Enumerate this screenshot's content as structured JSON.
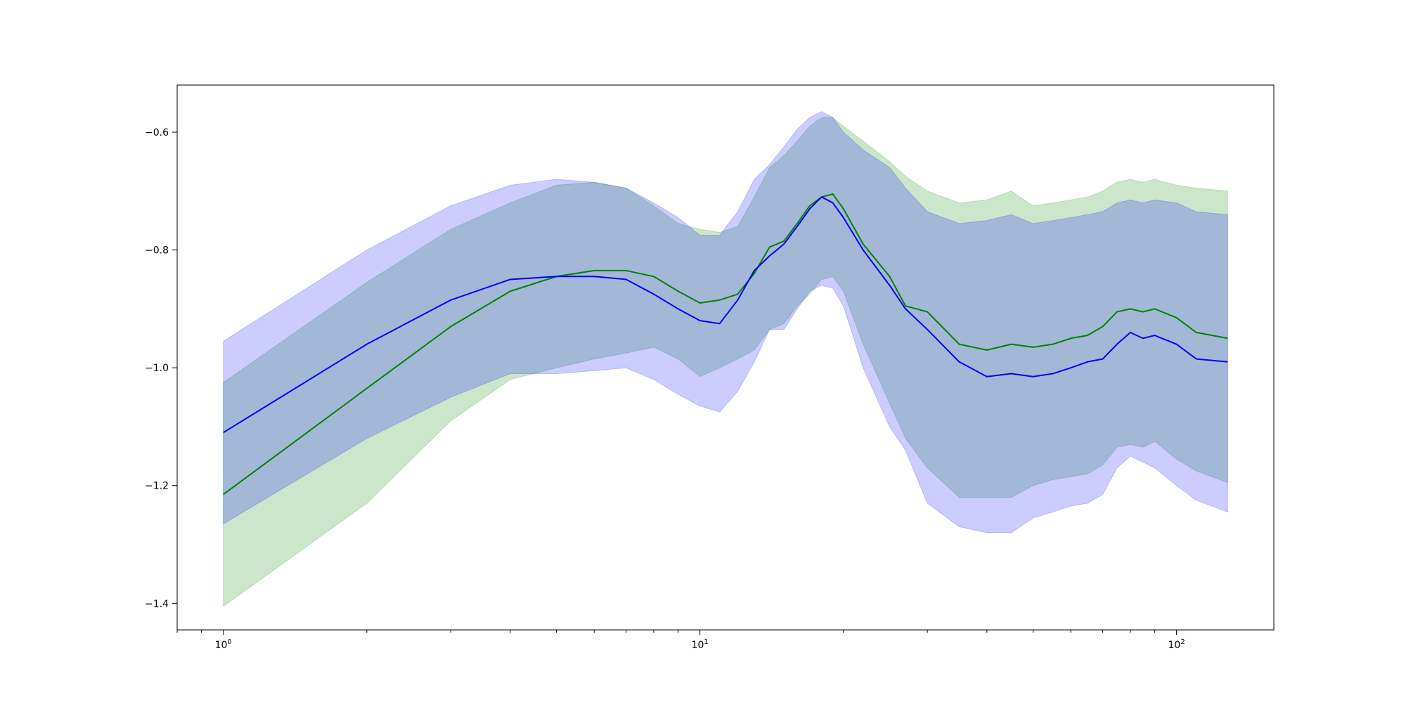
{
  "chart_data": {
    "type": "line",
    "title": "",
    "xlabel": "",
    "ylabel": "",
    "xscale": "log",
    "xlim": [
      0.8,
      160
    ],
    "ylim": [
      -1.445,
      -0.52
    ],
    "grid": false,
    "legend": null,
    "x_ticks": [
      {
        "value": 1,
        "base": "10",
        "exp": "0"
      },
      {
        "value": 10,
        "base": "10",
        "exp": "1"
      },
      {
        "value": 100,
        "base": "10",
        "exp": "2"
      }
    ],
    "y_ticks": [
      {
        "value": -0.6,
        "label": "−0.6"
      },
      {
        "value": -0.8,
        "label": "−0.8"
      },
      {
        "value": -1.0,
        "label": "−1.0"
      },
      {
        "value": -1.2,
        "label": "−1.2"
      },
      {
        "value": -1.4,
        "label": "−1.4"
      }
    ],
    "series": [
      {
        "color": "#008000",
        "band_color": "#008000",
        "band_opacity": 0.2,
        "x": [
          1,
          2,
          3,
          4,
          5,
          6,
          7,
          8,
          9,
          10,
          11,
          12,
          13,
          14,
          15,
          16,
          17,
          18,
          19,
          20,
          22,
          25,
          27,
          30,
          35,
          40,
          45,
          50,
          55,
          60,
          65,
          70,
          75,
          80,
          85,
          90,
          100,
          110,
          128
        ],
        "mean": [
          -1.215,
          -1.035,
          -0.93,
          -0.87,
          -0.845,
          -0.835,
          -0.835,
          -0.845,
          -0.87,
          -0.89,
          -0.885,
          -0.875,
          -0.84,
          -0.795,
          -0.785,
          -0.755,
          -0.725,
          -0.71,
          -0.705,
          -0.73,
          -0.79,
          -0.845,
          -0.895,
          -0.905,
          -0.96,
          -0.97,
          -0.96,
          -0.965,
          -0.96,
          -0.95,
          -0.945,
          -0.93,
          -0.905,
          -0.9,
          -0.905,
          -0.9,
          -0.915,
          -0.94,
          -0.95
        ],
        "upper": [
          -1.025,
          -0.855,
          -0.765,
          -0.72,
          -0.69,
          -0.685,
          -0.695,
          -0.725,
          -0.755,
          -0.765,
          -0.77,
          -0.76,
          -0.71,
          -0.66,
          -0.64,
          -0.615,
          -0.59,
          -0.575,
          -0.575,
          -0.59,
          -0.615,
          -0.65,
          -0.675,
          -0.7,
          -0.72,
          -0.715,
          -0.7,
          -0.725,
          -0.72,
          -0.715,
          -0.71,
          -0.7,
          -0.685,
          -0.68,
          -0.685,
          -0.68,
          -0.69,
          -0.695,
          -0.7
        ],
        "lower": [
          -1.405,
          -1.23,
          -1.09,
          -1.02,
          -1.0,
          -0.985,
          -0.975,
          -0.965,
          -0.985,
          -1.015,
          -1.0,
          -0.985,
          -0.97,
          -0.935,
          -0.925,
          -0.895,
          -0.875,
          -0.85,
          -0.845,
          -0.87,
          -0.96,
          -1.06,
          -1.12,
          -1.17,
          -1.22,
          -1.22,
          -1.22,
          -1.2,
          -1.19,
          -1.185,
          -1.18,
          -1.165,
          -1.135,
          -1.13,
          -1.135,
          -1.125,
          -1.155,
          -1.175,
          -1.195
        ]
      },
      {
        "color": "#0000ff",
        "band_color": "#0000ff",
        "band_opacity": 0.2,
        "x": [
          1,
          2,
          3,
          4,
          5,
          6,
          7,
          8,
          9,
          10,
          11,
          12,
          13,
          14,
          15,
          16,
          17,
          18,
          19,
          20,
          22,
          25,
          27,
          30,
          35,
          40,
          45,
          50,
          55,
          60,
          65,
          70,
          75,
          80,
          85,
          90,
          100,
          110,
          128
        ],
        "mean": [
          -1.11,
          -0.96,
          -0.885,
          -0.85,
          -0.845,
          -0.845,
          -0.85,
          -0.875,
          -0.9,
          -0.92,
          -0.925,
          -0.885,
          -0.835,
          -0.81,
          -0.79,
          -0.76,
          -0.73,
          -0.71,
          -0.72,
          -0.745,
          -0.8,
          -0.86,
          -0.9,
          -0.935,
          -0.99,
          -1.015,
          -1.01,
          -1.015,
          -1.01,
          -1.0,
          -0.99,
          -0.985,
          -0.96,
          -0.94,
          -0.95,
          -0.945,
          -0.96,
          -0.985,
          -0.99
        ],
        "upper": [
          -0.955,
          -0.8,
          -0.725,
          -0.69,
          -0.68,
          -0.685,
          -0.695,
          -0.72,
          -0.745,
          -0.775,
          -0.775,
          -0.735,
          -0.68,
          -0.655,
          -0.625,
          -0.595,
          -0.575,
          -0.565,
          -0.575,
          -0.6,
          -0.63,
          -0.66,
          -0.695,
          -0.735,
          -0.755,
          -0.75,
          -0.74,
          -0.755,
          -0.75,
          -0.745,
          -0.74,
          -0.735,
          -0.72,
          -0.715,
          -0.72,
          -0.715,
          -0.72,
          -0.735,
          -0.74
        ],
        "lower": [
          -1.265,
          -1.12,
          -1.05,
          -1.01,
          -1.01,
          -1.005,
          -1.0,
          -1.02,
          -1.045,
          -1.065,
          -1.075,
          -1.04,
          -0.99,
          -0.935,
          -0.935,
          -0.9,
          -0.87,
          -0.86,
          -0.865,
          -0.895,
          -1.0,
          -1.1,
          -1.14,
          -1.23,
          -1.27,
          -1.28,
          -1.28,
          -1.255,
          -1.245,
          -1.235,
          -1.23,
          -1.215,
          -1.17,
          -1.15,
          -1.16,
          -1.17,
          -1.2,
          -1.225,
          -1.245
        ]
      }
    ]
  }
}
